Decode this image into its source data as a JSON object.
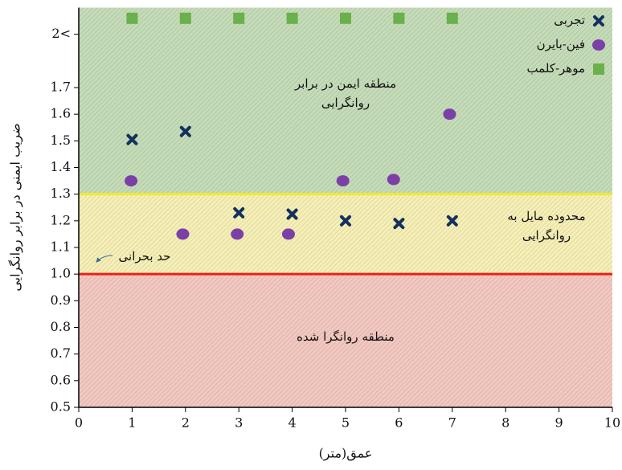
{
  "chart_data": {
    "type": "scatter",
    "x_label": "عمق(متر)",
    "y_label": "ضریب ایمنی در برابر روانگرایی",
    "xlim": [
      0,
      10
    ],
    "ylim": [
      0.5,
      2.0
    ],
    "xticks": [
      0,
      1,
      2,
      3,
      4,
      5,
      6,
      7,
      8,
      9,
      10
    ],
    "yticks": [
      0.5,
      0.6,
      0.7,
      0.8,
      0.9,
      {
        "value": 1,
        "label": "1.0"
      },
      1.1,
      1.2,
      1.3,
      1.4,
      1.5,
      1.6,
      1.7,
      {
        "value": 1.9,
        "label": "2<"
      }
    ],
    "regions": [
      {
        "from": 0.5,
        "to": 1,
        "color": "#f3c8c0",
        "lines": [
          "منطقه روانگرا شده"
        ]
      },
      {
        "from": 1,
        "to": 1.3,
        "color": "#f6efb6",
        "lines": [
          "محدوده مایل به",
          "روانگرایی"
        ]
      },
      {
        "from": 1.3,
        "to": 2.0,
        "color": "#c5dcb8",
        "lines": [
          "منطقه ایمن در برابر",
          "روانگرایی"
        ]
      }
    ],
    "threshold_lines": [
      {
        "value": 1,
        "color": "#e8211a"
      },
      {
        "value": 1.3,
        "color": "#f2ea2a"
      }
    ],
    "annotation": "حد بحرانی",
    "legend": "top-right",
    "series": [
      {
        "name": "تجربی",
        "marker": "x",
        "color": "#14305e",
        "x": [
          1,
          2,
          3,
          4,
          5,
          6,
          7
        ],
        "values": [
          1.505,
          1.535,
          1.23,
          1.225,
          1.2,
          1.19,
          1.2
        ]
      },
      {
        "name": "فین-بایرن",
        "marker": "circle",
        "color": "#7b3fa8",
        "x": [
          0.98,
          1.95,
          2.97,
          3.93,
          4.95,
          5.9,
          6.95
        ],
        "values": [
          1.35,
          1.15,
          1.15,
          1.15,
          1.35,
          1.355,
          1.6
        ]
      },
      {
        "name": "موهر-کلمب",
        "marker": "square",
        "color": "#6ab04c",
        "x": [
          1,
          2,
          3,
          4,
          5,
          6,
          7
        ],
        "values": [
          1.96,
          1.96,
          1.96,
          1.96,
          1.96,
          1.96,
          1.96
        ]
      }
    ]
  }
}
